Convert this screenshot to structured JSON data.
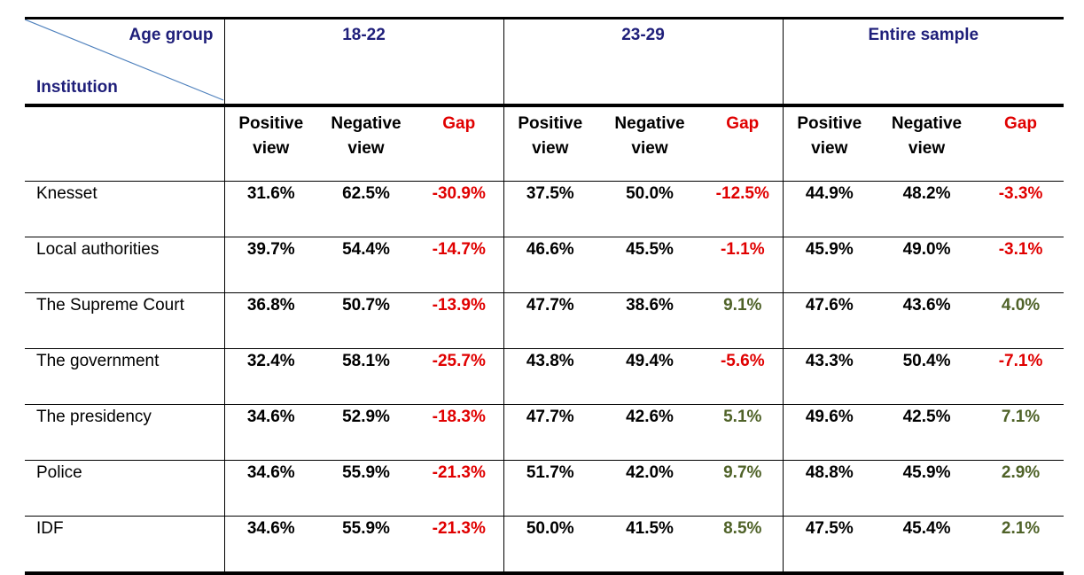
{
  "header": {
    "age_group_label": "Age group",
    "institution_label": "Institution",
    "groups": [
      "18-22",
      "23-29",
      "Entire sample"
    ]
  },
  "subheaders": {
    "positive_line1": "Positive",
    "positive_line2": "view",
    "negative_line1": "Negative",
    "negative_line2": "view",
    "gap": "Gap"
  },
  "rows": [
    {
      "institution": "Knesset",
      "values": [
        "31.6%",
        "62.5%",
        "-30.9%",
        "37.5%",
        "50.0%",
        "-12.5%",
        "44.9%",
        "48.2%",
        "-3.3%"
      ]
    },
    {
      "institution": "Local authorities",
      "values": [
        "39.7%",
        "54.4%",
        "-14.7%",
        "46.6%",
        "45.5%",
        "-1.1%",
        "45.9%",
        "49.0%",
        "-3.1%"
      ]
    },
    {
      "institution": "The Supreme Court",
      "values": [
        "36.8%",
        "50.7%",
        "-13.9%",
        "47.7%",
        "38.6%",
        "9.1%",
        "47.6%",
        "43.6%",
        "4.0%"
      ]
    },
    {
      "institution": "The government",
      "values": [
        "32.4%",
        "58.1%",
        "-25.7%",
        "43.8%",
        "49.4%",
        "-5.6%",
        "43.3%",
        "50.4%",
        "-7.1%"
      ]
    },
    {
      "institution": "The presidency",
      "values": [
        "34.6%",
        "52.9%",
        "-18.3%",
        "47.7%",
        "42.6%",
        "5.1%",
        "49.6%",
        "42.5%",
        "7.1%"
      ]
    },
    {
      "institution": "Police",
      "values": [
        "34.6%",
        "55.9%",
        "-21.3%",
        "51.7%",
        "42.0%",
        "9.7%",
        "48.8%",
        "45.9%",
        "2.9%"
      ]
    },
    {
      "institution": "IDF",
      "values": [
        "34.6%",
        "55.9%",
        "-21.3%",
        "50.0%",
        "41.5%",
        "8.5%",
        "47.5%",
        "45.4%",
        "2.1%"
      ]
    }
  ],
  "colors": {
    "negative_gap": "#e00000",
    "positive_gap": "#4f6228",
    "header_text": "#1f1f7a",
    "diagonal_line": "#4f81bd"
  }
}
